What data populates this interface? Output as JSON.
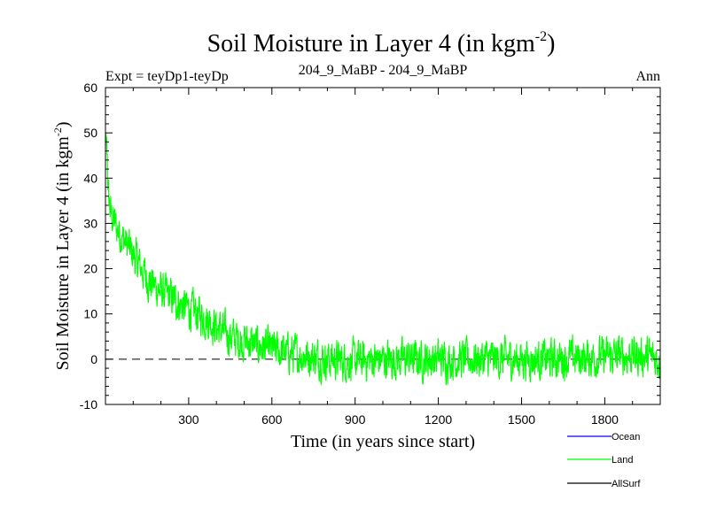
{
  "chart_data": {
    "type": "line",
    "title": "Soil Moisture in Layer 4 (in kgm",
    "title_sup": "-2",
    "title_end": ")",
    "subtitle_left": "Expt = teyDp1-teyDp",
    "subtitle_center": "204_9_MaBP - 204_9_MaBP",
    "subtitle_right": "Ann",
    "xlabel": "Time (in years since start)",
    "ylabel": "Soil Moisture in Layer 4 (in kgm",
    "ylabel_sup": "-2",
    "ylabel_end": ")",
    "xlim": [
      0,
      2000
    ],
    "ylim": [
      -10,
      60
    ],
    "xticks": [
      300,
      600,
      900,
      1200,
      1500,
      1800
    ],
    "yticks": [
      -10,
      0,
      10,
      20,
      30,
      40,
      50,
      60
    ],
    "zero_line": 0,
    "series": [
      {
        "name": "Ocean",
        "color": "#0000ff",
        "values": []
      },
      {
        "name": "Land",
        "color": "#00ff00",
        "x": [
          0,
          10,
          20,
          40,
          60,
          80,
          100,
          130,
          160,
          200,
          250,
          300,
          350,
          380,
          400,
          450,
          500,
          550,
          600,
          650,
          700,
          800,
          900,
          1000,
          1200,
          1400,
          1600,
          1800,
          1900,
          2000
        ],
        "values": [
          48,
          36,
          32,
          29,
          27,
          25,
          23,
          20,
          17,
          15,
          13,
          11,
          9.5,
          8.5,
          7,
          5,
          4,
          3,
          2,
          1.5,
          1,
          0,
          -0.5,
          0,
          0,
          0,
          0,
          0.5,
          1,
          0
        ],
        "noise_amplitude": 3.5
      },
      {
        "name": "AllSurf",
        "color": "#000000",
        "values": []
      }
    ],
    "legend_position": "bottom-right"
  }
}
